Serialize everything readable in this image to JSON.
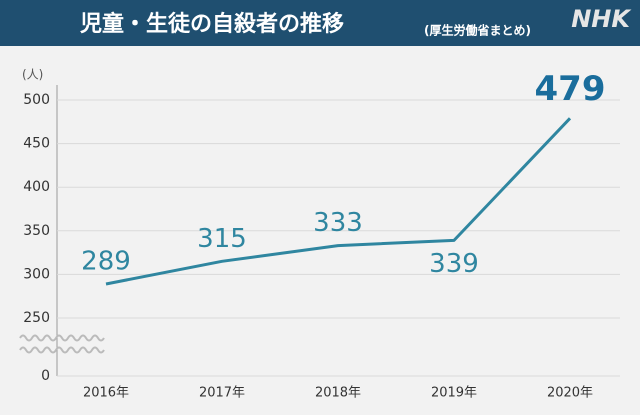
{
  "header": {
    "title": "児童・生徒の自殺者の推移",
    "subtitle": "(厚生労働省まとめ)",
    "logo": "NHK"
  },
  "chart_data": {
    "type": "line",
    "y_unit": "(人)",
    "categories": [
      "2016年",
      "2017年",
      "2018年",
      "2019年",
      "2020年"
    ],
    "values": [
      289,
      315,
      333,
      339,
      479
    ],
    "color": "#2f86a0",
    "ylim": [
      0,
      500
    ],
    "yticks": [
      0,
      250,
      300,
      350,
      400,
      450,
      500
    ],
    "axis_break": true,
    "grid": true
  }
}
